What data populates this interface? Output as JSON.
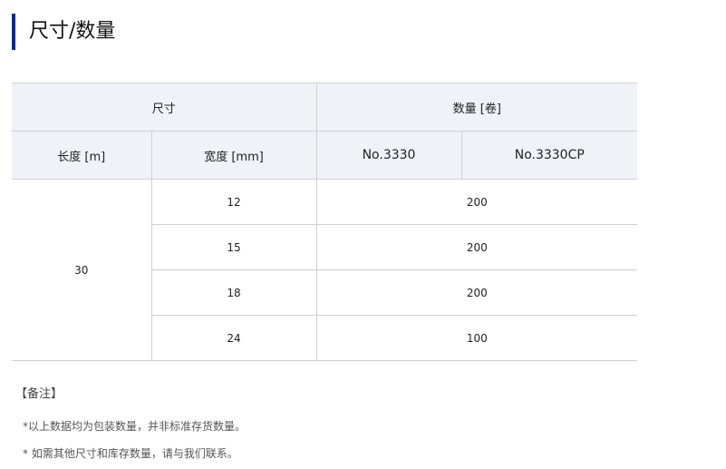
{
  "title": "尺寸/数量",
  "accent_color": "#0b2a8c",
  "table": {
    "group_headers": [
      "尺寸",
      "数量 [卷]"
    ],
    "sub_headers": [
      "长度 [m]",
      "宽度 [mm]",
      "No.3330",
      "No.3330CP"
    ],
    "length": "30",
    "rows": [
      {
        "width": "12",
        "quantity": "200"
      },
      {
        "width": "15",
        "quantity": "200"
      },
      {
        "width": "18",
        "quantity": "200"
      },
      {
        "width": "24",
        "quantity": "100"
      }
    ]
  },
  "notes": {
    "heading": "【备注】",
    "items": [
      "*以上数据均为包装数量，并非标准存货数量。",
      "* 如需其他尺寸和库存数量，请与我们联系。"
    ]
  }
}
